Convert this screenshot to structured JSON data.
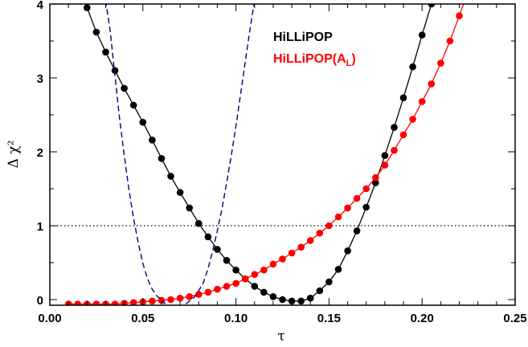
{
  "chart_data": {
    "type": "line",
    "xlabel": "τ",
    "ylabel": "Δ χ²",
    "xlim": [
      0.0,
      0.25
    ],
    "ylim": [
      -0.05,
      4.0
    ],
    "xticks": [
      "0.00",
      "0.05",
      "0.10",
      "0.15",
      "0.20",
      "0.25"
    ],
    "xtick_values": [
      0.0,
      0.05,
      0.1,
      0.15,
      0.2,
      0.25
    ],
    "yticks": [
      "0",
      "1",
      "2",
      "3",
      "4"
    ],
    "ytick_values": [
      0,
      1,
      2,
      3,
      4
    ],
    "reference_line": {
      "y": 1.0,
      "style": "dotted"
    },
    "legend": {
      "placement": "top-right",
      "entries": [
        {
          "text": "HiLLiPOP",
          "color": "#000000"
        },
        {
          "text": "HiLLiPOP(A",
          "subscript": "L",
          "suffix": ")",
          "color": "#ff0000"
        }
      ]
    },
    "series": [
      {
        "name": "HiLLiPOP",
        "color": "#000000",
        "style": "line-markers",
        "markers": true,
        "x": [
          0.0175,
          0.02,
          0.025,
          0.03,
          0.035,
          0.04,
          0.045,
          0.05,
          0.055,
          0.06,
          0.065,
          0.07,
          0.075,
          0.08,
          0.085,
          0.09,
          0.095,
          0.1,
          0.105,
          0.11,
          0.115,
          0.12,
          0.125,
          0.13,
          0.135,
          0.14,
          0.145,
          0.15,
          0.155,
          0.16,
          0.165,
          0.17,
          0.175,
          0.18,
          0.185,
          0.19,
          0.195,
          0.2,
          0.205,
          0.21
        ],
        "y": [
          4.2,
          3.95,
          3.62,
          3.35,
          3.1,
          2.86,
          2.63,
          2.4,
          2.16,
          1.91,
          1.67,
          1.45,
          1.24,
          1.03,
          0.85,
          0.68,
          0.53,
          0.4,
          0.28,
          0.18,
          0.1,
          0.04,
          0.0,
          -0.02,
          -0.02,
          0.02,
          0.12,
          0.24,
          0.41,
          0.66,
          0.93,
          1.25,
          1.58,
          1.95,
          2.33,
          2.73,
          3.15,
          3.58,
          4.0,
          4.45
        ]
      },
      {
        "name": "HiLLiPOP(AL)",
        "color": "#ff0000",
        "style": "line-markers",
        "markers": true,
        "x": [
          0.01,
          0.015,
          0.02,
          0.025,
          0.03,
          0.035,
          0.04,
          0.045,
          0.05,
          0.055,
          0.06,
          0.065,
          0.07,
          0.075,
          0.08,
          0.085,
          0.09,
          0.095,
          0.1,
          0.105,
          0.11,
          0.115,
          0.12,
          0.125,
          0.13,
          0.135,
          0.14,
          0.145,
          0.15,
          0.155,
          0.16,
          0.165,
          0.17,
          0.175,
          0.18,
          0.185,
          0.19,
          0.195,
          0.2,
          0.205,
          0.21,
          0.215,
          0.22,
          0.225
        ],
        "y": [
          -0.06,
          -0.06,
          -0.06,
          -0.06,
          -0.06,
          -0.06,
          -0.05,
          -0.04,
          -0.03,
          -0.02,
          -0.01,
          0.0,
          0.02,
          0.04,
          0.07,
          0.1,
          0.14,
          0.18,
          0.22,
          0.28,
          0.34,
          0.4,
          0.48,
          0.55,
          0.63,
          0.71,
          0.8,
          0.9,
          1.0,
          1.12,
          1.24,
          1.37,
          1.5,
          1.65,
          1.82,
          2.02,
          2.23,
          2.44,
          2.68,
          2.92,
          3.2,
          3.5,
          3.84,
          4.2
        ]
      },
      {
        "name": "",
        "color": "#000080",
        "style": "dashed",
        "markers": false,
        "x": [
          0.03,
          0.0325,
          0.035,
          0.0375,
          0.04,
          0.0425,
          0.045,
          0.0475,
          0.05,
          0.0525,
          0.055,
          0.0575,
          0.06,
          0.061,
          0.062
        ],
        "y": [
          4.05,
          3.62,
          3.02,
          2.45,
          1.95,
          1.49,
          1.1,
          0.77,
          0.49,
          0.28,
          0.14,
          0.05,
          0.0,
          -0.03,
          -0.06
        ]
      },
      {
        "name": "",
        "color": "#000080",
        "style": "dashed",
        "markers": false,
        "x": [
          0.073,
          0.0745,
          0.076,
          0.078,
          0.08,
          0.0825,
          0.085,
          0.0875,
          0.09,
          0.0925,
          0.095,
          0.0975,
          0.1,
          0.1025,
          0.105,
          0.1075,
          0.11,
          0.112
        ],
        "y": [
          -0.06,
          -0.03,
          0.0,
          0.04,
          0.12,
          0.23,
          0.42,
          0.66,
          0.93,
          1.23,
          1.58,
          1.95,
          2.35,
          2.78,
          3.22,
          3.65,
          4.05,
          4.4
        ]
      }
    ]
  }
}
